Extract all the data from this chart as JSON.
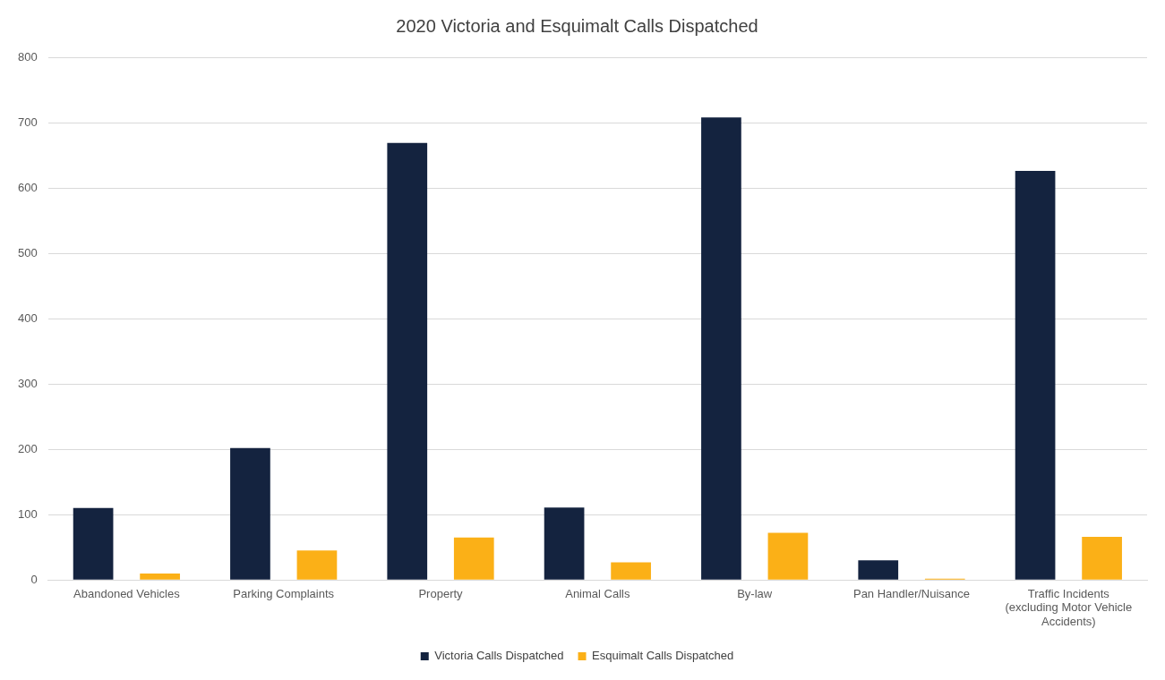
{
  "chart_data": {
    "type": "bar",
    "title": "2020 Victoria and Esquimalt Calls Dispatched",
    "categories": [
      "Abandoned Vehicles",
      "Parking Complaints",
      "Property",
      "Animal Calls",
      "By-law",
      "Pan Handler/Nuisance",
      "Traffic Incidents (excluding Motor Vehicle Accidents)"
    ],
    "series": [
      {
        "name": "Victoria Calls Dispatched",
        "color": "#14233f",
        "values": [
          110,
          202,
          669,
          111,
          708,
          30,
          626
        ]
      },
      {
        "name": "Esquimalt Calls Dispatched",
        "color": "#fbb017",
        "values": [
          10,
          45,
          65,
          27,
          72,
          2,
          66
        ]
      }
    ],
    "ylim": [
      0,
      800
    ],
    "yticks": [
      0,
      100,
      200,
      300,
      400,
      500,
      600,
      700,
      800
    ],
    "grid": "y",
    "legend": "bottom"
  }
}
